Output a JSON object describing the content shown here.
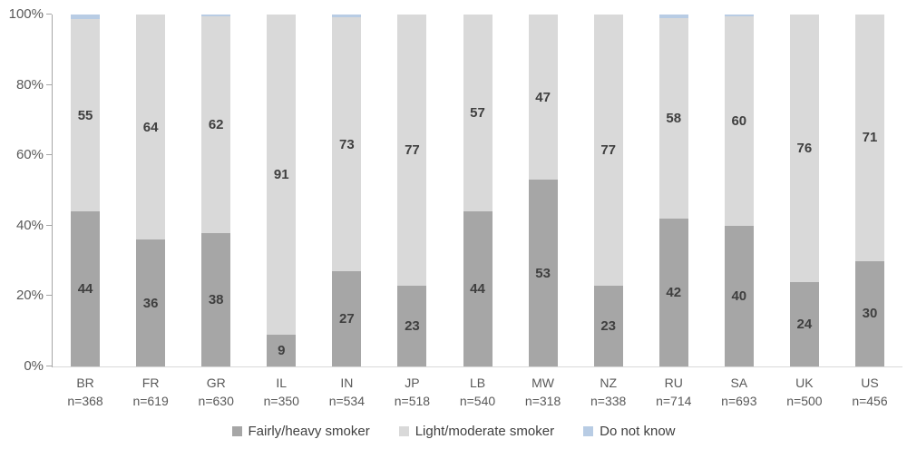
{
  "chart_data": {
    "type": "bar",
    "stacked": true,
    "percent_stacked": true,
    "title": "",
    "xlabel": "",
    "ylabel": "",
    "ylim": [
      0,
      100
    ],
    "grid": false,
    "legend_position": "bottom",
    "yticks": [
      "0%",
      "20%",
      "40%",
      "60%",
      "80%",
      "100%"
    ],
    "categories": [
      "BR",
      "FR",
      "GR",
      "IL",
      "IN",
      "JP",
      "LB",
      "MW",
      "NZ",
      "RU",
      "SA",
      "UK",
      "US"
    ],
    "category_sublabels": [
      "n=368",
      "n=619",
      "n=630",
      "n=350",
      "n=534",
      "n=518",
      "n=540",
      "n=318",
      "n=338",
      "n=714",
      "n=693",
      "n=500",
      "n=456"
    ],
    "series": [
      {
        "name": "Fairly/heavy smoker",
        "color": "#a6a6a6",
        "show_labels": true,
        "values": [
          44,
          36,
          38,
          9,
          27,
          23,
          44,
          53,
          23,
          42,
          40,
          24,
          30
        ]
      },
      {
        "name": "Light/moderate smoker",
        "color": "#d9d9d9",
        "show_labels": true,
        "values": [
          55,
          64,
          62,
          91,
          73,
          77,
          57,
          47,
          77,
          58,
          60,
          76,
          71
        ]
      },
      {
        "name": "Do not know",
        "color": "#b8cce4",
        "show_labels": false,
        "values": [
          1.3,
          0,
          0.4,
          0,
          0.8,
          0,
          0,
          0,
          0,
          1.0,
          0.5,
          0,
          0
        ]
      }
    ]
  },
  "colors": {
    "axis_line": "#a6a6a6",
    "baseline": "#d9d9d9",
    "tick_label": "#595959",
    "value_label": "#3f3f3f",
    "background": "#ffffff"
  }
}
